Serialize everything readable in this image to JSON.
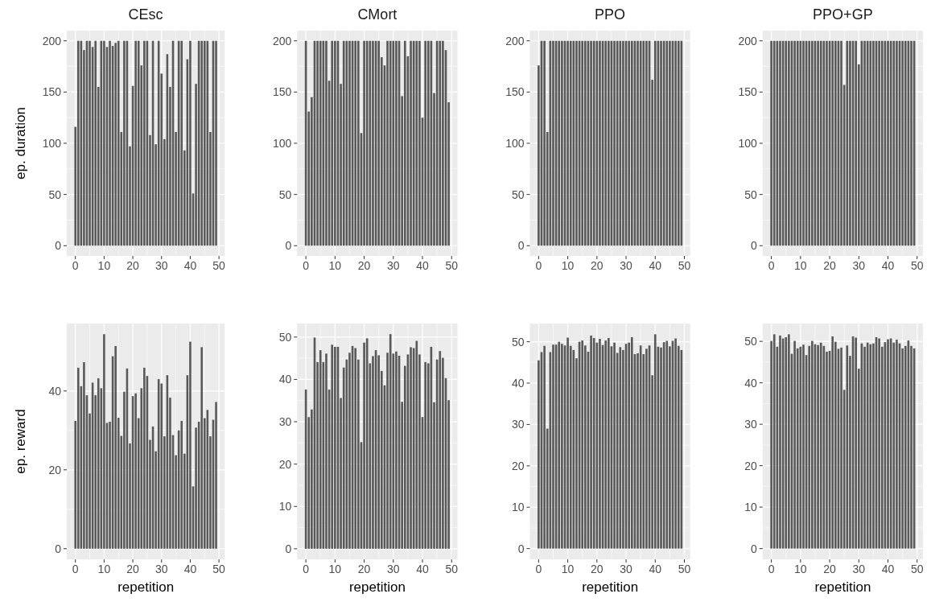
{
  "chart_data": [
    {
      "type": "bar",
      "title": "CEsc",
      "ylabel": "ep. duration",
      "grid": true,
      "xlim": [
        -3,
        52
      ],
      "xticks": [
        0,
        10,
        20,
        30,
        40,
        50
      ],
      "ylim": [
        -10,
        210
      ],
      "yticks": [
        0,
        50,
        100,
        150,
        200
      ],
      "color": "#595959",
      "x": [
        0,
        1,
        2,
        3,
        4,
        5,
        6,
        7,
        8,
        9,
        10,
        11,
        12,
        13,
        14,
        15,
        16,
        17,
        18,
        19,
        20,
        21,
        22,
        23,
        24,
        25,
        26,
        27,
        28,
        29,
        30,
        31,
        32,
        33,
        34,
        35,
        36,
        37,
        38,
        39,
        40,
        41,
        42,
        43,
        44,
        45,
        46,
        47,
        48,
        49
      ],
      "values": [
        116,
        200,
        200,
        191,
        200,
        200,
        194,
        200,
        155,
        200,
        200,
        194,
        200,
        195,
        198,
        200,
        111,
        200,
        200,
        97,
        156,
        200,
        200,
        176,
        200,
        200,
        108,
        200,
        99,
        200,
        168,
        104,
        187,
        155,
        200,
        111,
        200,
        200,
        93,
        182,
        200,
        51,
        158,
        200,
        200,
        200,
        200,
        111,
        200,
        200
      ]
    },
    {
      "type": "bar",
      "title": "CMort",
      "grid": true,
      "xlim": [
        -3,
        52
      ],
      "xticks": [
        0,
        10,
        20,
        30,
        40,
        50
      ],
      "ylim": [
        -10,
        210
      ],
      "yticks": [
        0,
        50,
        100,
        150,
        200
      ],
      "color": "#595959",
      "x": [
        0,
        1,
        2,
        3,
        4,
        5,
        6,
        7,
        8,
        9,
        10,
        11,
        12,
        13,
        14,
        15,
        16,
        17,
        18,
        19,
        20,
        21,
        22,
        23,
        24,
        25,
        26,
        27,
        28,
        29,
        30,
        31,
        32,
        33,
        34,
        35,
        36,
        37,
        38,
        39,
        40,
        41,
        42,
        43,
        44,
        45,
        46,
        47,
        48,
        49
      ],
      "values": [
        200,
        131,
        145,
        200,
        200,
        200,
        200,
        200,
        161,
        200,
        200,
        200,
        158,
        200,
        200,
        200,
        200,
        200,
        200,
        110,
        200,
        200,
        200,
        200,
        200,
        200,
        184,
        176,
        200,
        200,
        200,
        200,
        200,
        146,
        200,
        185,
        200,
        200,
        200,
        200,
        125,
        200,
        200,
        200,
        149,
        200,
        200,
        200,
        191,
        140
      ]
    },
    {
      "type": "bar",
      "title": "PPO",
      "grid": true,
      "xlim": [
        -3,
        52
      ],
      "xticks": [
        0,
        10,
        20,
        30,
        40,
        50
      ],
      "ylim": [
        -10,
        210
      ],
      "yticks": [
        0,
        50,
        100,
        150,
        200
      ],
      "color": "#595959",
      "x": [
        0,
        1,
        2,
        3,
        4,
        5,
        6,
        7,
        8,
        9,
        10,
        11,
        12,
        13,
        14,
        15,
        16,
        17,
        18,
        19,
        20,
        21,
        22,
        23,
        24,
        25,
        26,
        27,
        28,
        29,
        30,
        31,
        32,
        33,
        34,
        35,
        36,
        37,
        38,
        39,
        40,
        41,
        42,
        43,
        44,
        45,
        46,
        47,
        48,
        49
      ],
      "values": [
        176,
        200,
        200,
        111,
        200,
        200,
        200,
        200,
        200,
        200,
        200,
        200,
        200,
        200,
        200,
        200,
        200,
        200,
        200,
        200,
        200,
        200,
        200,
        200,
        200,
        200,
        200,
        200,
        200,
        200,
        200,
        200,
        200,
        200,
        200,
        200,
        200,
        200,
        200,
        162,
        200,
        200,
        200,
        200,
        200,
        200,
        200,
        200,
        200,
        200
      ]
    },
    {
      "type": "bar",
      "title": "PPO+GP",
      "grid": true,
      "xlim": [
        -3,
        52
      ],
      "xticks": [
        0,
        10,
        20,
        30,
        40,
        50
      ],
      "ylim": [
        -10,
        210
      ],
      "yticks": [
        0,
        50,
        100,
        150,
        200
      ],
      "color": "#595959",
      "x": [
        0,
        1,
        2,
        3,
        4,
        5,
        6,
        7,
        8,
        9,
        10,
        11,
        12,
        13,
        14,
        15,
        16,
        17,
        18,
        19,
        20,
        21,
        22,
        23,
        24,
        25,
        26,
        27,
        28,
        29,
        30,
        31,
        32,
        33,
        34,
        35,
        36,
        37,
        38,
        39,
        40,
        41,
        42,
        43,
        44,
        45,
        46,
        47,
        48,
        49
      ],
      "values": [
        200,
        200,
        200,
        200,
        200,
        200,
        200,
        200,
        200,
        200,
        200,
        200,
        200,
        200,
        200,
        200,
        200,
        200,
        200,
        200,
        200,
        200,
        200,
        200,
        200,
        157,
        200,
        200,
        200,
        200,
        177,
        200,
        200,
        200,
        200,
        200,
        200,
        200,
        200,
        200,
        200,
        200,
        200,
        200,
        200,
        200,
        200,
        200,
        200,
        200
      ]
    },
    {
      "type": "bar",
      "ylabel": "ep. reward",
      "xlabel": "repetition",
      "grid": true,
      "xlim": [
        -3,
        52
      ],
      "xticks": [
        0,
        10,
        20,
        30,
        40,
        50
      ],
      "ylim": [
        -2.7,
        57.1
      ],
      "yticks": [
        0,
        20,
        40
      ],
      "color": "#595959",
      "x": [
        0,
        1,
        2,
        3,
        4,
        5,
        6,
        7,
        8,
        9,
        10,
        11,
        12,
        13,
        14,
        15,
        16,
        17,
        18,
        19,
        20,
        21,
        22,
        23,
        24,
        25,
        26,
        27,
        28,
        29,
        30,
        31,
        32,
        33,
        34,
        35,
        36,
        37,
        38,
        39,
        40,
        41,
        42,
        43,
        44,
        45,
        46,
        47,
        48,
        49
      ],
      "values": [
        32.4,
        45.9,
        41.2,
        47.3,
        38.9,
        34.3,
        42.1,
        38.9,
        43.2,
        40.7,
        54.4,
        31.9,
        32.2,
        48.8,
        51.4,
        33.2,
        28.6,
        39.8,
        45.7,
        26.7,
        38.7,
        39.4,
        33.1,
        40.7,
        45.9,
        43.8,
        27.6,
        31.0,
        24.7,
        43.0,
        41.9,
        28.5,
        44.0,
        38.3,
        28.8,
        23.7,
        30.0,
        32.4,
        24.1,
        44.0,
        52.5,
        15.8,
        30.7,
        32.2,
        51.1,
        33.1,
        35.2,
        28.5,
        32.7,
        37.2
      ]
    },
    {
      "type": "bar",
      "xlabel": "repetition",
      "grid": true,
      "xlim": [
        -3,
        52
      ],
      "xticks": [
        0,
        10,
        20,
        30,
        40,
        50
      ],
      "ylim": [
        -2.5,
        53.2
      ],
      "yticks": [
        0,
        10,
        20,
        30,
        40,
        50
      ],
      "color": "#595959",
      "x": [
        0,
        1,
        2,
        3,
        4,
        5,
        6,
        7,
        8,
        9,
        10,
        11,
        12,
        13,
        14,
        15,
        16,
        17,
        18,
        19,
        20,
        21,
        22,
        23,
        24,
        25,
        26,
        27,
        28,
        29,
        30,
        31,
        32,
        33,
        34,
        35,
        36,
        37,
        38,
        39,
        40,
        41,
        42,
        43,
        44,
        45,
        46,
        47,
        48,
        49
      ],
      "values": [
        37.6,
        31.1,
        32.9,
        49.9,
        44.1,
        46.9,
        44.1,
        46.1,
        37.6,
        48.2,
        47.7,
        47.7,
        35.6,
        42.8,
        44.7,
        46.3,
        47.9,
        47.4,
        44.7,
        25.2,
        48.7,
        49.7,
        43.8,
        45.5,
        46.9,
        45.7,
        42.0,
        38.6,
        46.3,
        50.7,
        46.1,
        46.6,
        45.6,
        34.7,
        43.2,
        45.9,
        47.6,
        47.4,
        49.1,
        45.9,
        31.1,
        44.1,
        43.8,
        47.7,
        34.6,
        44.7,
        46.7,
        45.1,
        40.3,
        35.1
      ]
    },
    {
      "type": "bar",
      "xlabel": "repetition",
      "grid": true,
      "xlim": [
        -3,
        52
      ],
      "xticks": [
        0,
        10,
        20,
        30,
        40,
        50
      ],
      "ylim": [
        -2.6,
        54.4
      ],
      "yticks": [
        0,
        10,
        20,
        30,
        40,
        50
      ],
      "color": "#595959",
      "x": [
        0,
        1,
        2,
        3,
        4,
        5,
        6,
        7,
        8,
        9,
        10,
        11,
        12,
        13,
        14,
        15,
        16,
        17,
        18,
        19,
        20,
        21,
        22,
        23,
        24,
        25,
        26,
        27,
        28,
        29,
        30,
        31,
        32,
        33,
        34,
        35,
        36,
        37,
        38,
        39,
        40,
        41,
        42,
        43,
        44,
        45,
        46,
        47,
        48,
        49
      ],
      "values": [
        45.5,
        47.5,
        49.0,
        29.0,
        47.5,
        49.3,
        49.3,
        50.0,
        49.5,
        49.1,
        51.0,
        49.0,
        48.0,
        46.0,
        50.0,
        50.3,
        49.1,
        47.6,
        51.5,
        50.9,
        49.8,
        50.7,
        49.2,
        50.3,
        50.9,
        48.9,
        49.8,
        47.3,
        48.7,
        48.0,
        49.5,
        49.8,
        51.1,
        47.0,
        47.2,
        49.1,
        47.0,
        48.3,
        49.1,
        41.9,
        51.8,
        48.8,
        48.6,
        49.9,
        50.2,
        48.9,
        50.2,
        50.8,
        49.0,
        48.0
      ]
    },
    {
      "type": "bar",
      "xlabel": "repetition",
      "grid": true,
      "xlim": [
        -3,
        52
      ],
      "xticks": [
        0,
        10,
        20,
        30,
        40,
        50
      ],
      "ylim": [
        -2.6,
        54.3
      ],
      "yticks": [
        0,
        10,
        20,
        30,
        40,
        50
      ],
      "color": "#595959",
      "x": [
        0,
        1,
        2,
        3,
        4,
        5,
        6,
        7,
        8,
        9,
        10,
        11,
        12,
        13,
        14,
        15,
        16,
        17,
        18,
        19,
        20,
        21,
        22,
        23,
        24,
        25,
        26,
        27,
        28,
        29,
        30,
        31,
        32,
        33,
        34,
        35,
        36,
        37,
        38,
        39,
        40,
        41,
        42,
        43,
        44,
        45,
        46,
        47,
        48,
        49
      ],
      "values": [
        50.1,
        51.7,
        48.7,
        51.4,
        50.7,
        51.0,
        51.7,
        47.0,
        50.1,
        48.3,
        48.7,
        49.2,
        46.7,
        48.9,
        50.1,
        49.3,
        49.1,
        49.7,
        48.9,
        47.5,
        47.7,
        51.2,
        49.9,
        48.2,
        48.5,
        38.3,
        49.0,
        46.5,
        51.2,
        50.9,
        43.4,
        49.5,
        48.7,
        49.7,
        49.3,
        49.5,
        51.0,
        50.7,
        48.7,
        49.8,
        50.5,
        50.7,
        49.7,
        50.4,
        49.5,
        48.3,
        48.9,
        50.2,
        48.9,
        48.3
      ]
    }
  ]
}
